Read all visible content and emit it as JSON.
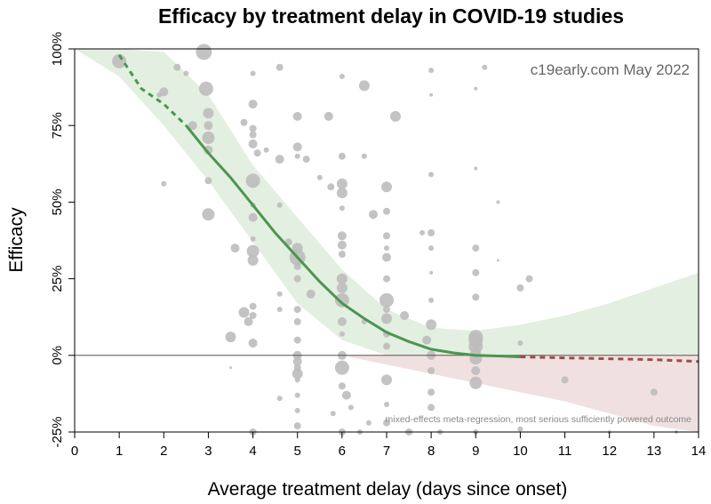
{
  "chart_data": {
    "type": "scatter",
    "title": "Efficacy by treatment delay in COVID-19 studies",
    "xlabel": "Average treatment delay (days since onset)",
    "ylabel": "Efficacy",
    "watermark": "c19early.com May 2022",
    "note": "mixed-effects meta-regression, most serious sufficiently powered outcome",
    "xlim": [
      0,
      14
    ],
    "ylim": [
      -25,
      100
    ],
    "xticks": [
      "0",
      "1",
      "2",
      "3",
      "4",
      "5",
      "6",
      "7",
      "8",
      "9",
      "10",
      "11",
      "12",
      "13",
      "14"
    ],
    "yticks": [
      {
        "value": 100,
        "label": "100%"
      },
      {
        "value": 75,
        "label": "75%"
      },
      {
        "value": 50,
        "label": "50%"
      },
      {
        "value": 25,
        "label": "25%"
      },
      {
        "value": 0,
        "label": "0%"
      },
      {
        "value": -25,
        "label": "-25%"
      }
    ],
    "colors": {
      "positive_band": "#e3efe0",
      "negative_band": "#f0e0e0",
      "positive_line": "#4a9650",
      "negative_line": "#a04a4a",
      "points": "#bdbdbd"
    },
    "band": [
      {
        "x": 0,
        "lo": 100,
        "hi": 100
      },
      {
        "x": 1,
        "lo": 91,
        "hi": 100
      },
      {
        "x": 2,
        "lo": 75,
        "hi": 99
      },
      {
        "x": 3,
        "lo": 57,
        "hi": 85
      },
      {
        "x": 4,
        "lo": 37,
        "hi": 62
      },
      {
        "x": 5,
        "lo": 17,
        "hi": 45
      },
      {
        "x": 6,
        "lo": 5,
        "hi": 28
      },
      {
        "x": 7,
        "lo": -3,
        "hi": 15
      },
      {
        "x": 8,
        "lo": -6,
        "hi": 9
      },
      {
        "x": 9,
        "lo": -9,
        "hi": 8
      },
      {
        "x": 10,
        "lo": -12,
        "hi": 10
      },
      {
        "x": 11,
        "lo": -15,
        "hi": 13
      },
      {
        "x": 12,
        "lo": -19,
        "hi": 17
      },
      {
        "x": 13,
        "lo": -23,
        "hi": 22
      },
      {
        "x": 14,
        "lo": -27,
        "hi": 27
      }
    ],
    "fit_line": {
      "dashed_start": [
        [
          1,
          98
        ],
        [
          1.5,
          87
        ],
        [
          2,
          82
        ],
        [
          2.5,
          75
        ]
      ],
      "solid": [
        [
          2.5,
          75
        ],
        [
          3,
          66
        ],
        [
          3.5,
          58
        ],
        [
          4,
          49
        ],
        [
          4.5,
          40
        ],
        [
          5,
          32
        ],
        [
          5.5,
          24
        ],
        [
          6,
          17
        ],
        [
          6.5,
          12
        ],
        [
          7,
          7.5
        ],
        [
          7.5,
          4.5
        ],
        [
          8,
          2
        ],
        [
          8.5,
          0.8
        ],
        [
          9,
          0
        ],
        [
          9.5,
          -0.2
        ],
        [
          10,
          -0.5
        ]
      ],
      "dashed_end": [
        [
          10,
          -0.5
        ],
        [
          11,
          -0.8
        ],
        [
          12,
          -1.1
        ],
        [
          13,
          -1.4
        ],
        [
          14,
          -2
        ]
      ]
    },
    "points": [
      [
        1,
        96,
        8
      ],
      [
        1.9,
        85,
        3
      ],
      [
        2,
        86,
        5
      ],
      [
        2.3,
        94,
        4
      ],
      [
        2.5,
        92,
        3
      ],
      [
        2.65,
        75,
        5
      ],
      [
        2.9,
        99,
        9
      ],
      [
        2.95,
        87,
        8
      ],
      [
        3,
        79,
        6
      ],
      [
        3,
        75,
        5
      ],
      [
        3,
        71,
        7
      ],
      [
        3,
        67,
        5
      ],
      [
        3,
        57,
        4
      ],
      [
        3,
        46,
        7
      ],
      [
        2,
        56,
        3
      ],
      [
        3.6,
        35,
        5
      ],
      [
        3.5,
        6,
        6
      ],
      [
        3.5,
        -4,
        1.5
      ],
      [
        3.8,
        14,
        6
      ],
      [
        3.9,
        11,
        5
      ],
      [
        4,
        92,
        3
      ],
      [
        4,
        82,
        5
      ],
      [
        3.8,
        76,
        4
      ],
      [
        4,
        74,
        4
      ],
      [
        4,
        72,
        4
      ],
      [
        4,
        69,
        5
      ],
      [
        4.1,
        66,
        4
      ],
      [
        4.3,
        67,
        3
      ],
      [
        4,
        57,
        8
      ],
      [
        4,
        49,
        3
      ],
      [
        4,
        45,
        5
      ],
      [
        4,
        38,
        3
      ],
      [
        4,
        34,
        7
      ],
      [
        4,
        31,
        6
      ],
      [
        4,
        16,
        4
      ],
      [
        4,
        13,
        4
      ],
      [
        4,
        4,
        5
      ],
      [
        4,
        -25,
        4
      ],
      [
        4.6,
        94,
        4
      ],
      [
        4.6,
        64,
        5
      ],
      [
        4.6,
        49,
        3
      ],
      [
        4.6,
        20,
        3
      ],
      [
        4.6,
        15,
        3
      ],
      [
        4.6,
        -14,
        3
      ],
      [
        4.8,
        37,
        4
      ],
      [
        5,
        78,
        5
      ],
      [
        5,
        68,
        5
      ],
      [
        5,
        65,
        3
      ],
      [
        5,
        35,
        6
      ],
      [
        5,
        32,
        9
      ],
      [
        5,
        29,
        4
      ],
      [
        5,
        25,
        4
      ],
      [
        5,
        15,
        4
      ],
      [
        5,
        11,
        4
      ],
      [
        5,
        5,
        4
      ],
      [
        5,
        0,
        5
      ],
      [
        5,
        -2,
        5
      ],
      [
        5,
        -4,
        4
      ],
      [
        5,
        -6,
        6
      ],
      [
        5,
        -8,
        3
      ],
      [
        5,
        -13,
        3
      ],
      [
        5,
        -18,
        3
      ],
      [
        5,
        -23,
        4
      ],
      [
        5.2,
        64,
        4
      ],
      [
        5.3,
        20,
        5
      ],
      [
        5.5,
        58,
        3
      ],
      [
        5.7,
        78,
        5
      ],
      [
        5.75,
        55,
        4
      ],
      [
        6,
        91,
        3
      ],
      [
        6,
        65,
        4
      ],
      [
        6,
        56,
        6
      ],
      [
        6,
        53,
        6
      ],
      [
        6,
        48,
        3
      ],
      [
        6,
        39,
        5
      ],
      [
        6,
        36,
        5
      ],
      [
        6,
        33,
        4
      ],
      [
        6,
        25,
        6
      ],
      [
        6,
        22,
        6
      ],
      [
        6,
        18,
        8
      ],
      [
        6,
        11,
        5
      ],
      [
        6,
        7,
        3
      ],
      [
        6,
        0,
        5
      ],
      [
        6,
        -4,
        8
      ],
      [
        6,
        -10,
        4
      ],
      [
        6.1,
        -13,
        5
      ],
      [
        6.2,
        -17,
        3
      ],
      [
        5.8,
        -19,
        3
      ],
      [
        6,
        -25,
        4
      ],
      [
        6.5,
        88,
        6
      ],
      [
        6.5,
        65,
        3
      ],
      [
        6.5,
        11,
        3
      ],
      [
        6.4,
        -25,
        3
      ],
      [
        6.6,
        -22,
        3
      ],
      [
        6.7,
        46,
        5
      ],
      [
        7,
        55,
        6
      ],
      [
        7,
        47,
        4
      ],
      [
        7,
        39,
        4
      ],
      [
        7,
        35,
        3
      ],
      [
        7,
        32,
        5
      ],
      [
        7,
        25,
        4
      ],
      [
        7,
        18,
        8
      ],
      [
        7,
        15,
        4
      ],
      [
        7,
        12,
        6
      ],
      [
        7,
        7,
        4
      ],
      [
        7,
        3,
        4
      ],
      [
        7,
        -8,
        6
      ],
      [
        7,
        -16,
        3
      ],
      [
        7,
        -22,
        4
      ],
      [
        7.2,
        78,
        6
      ],
      [
        7.4,
        13,
        5
      ],
      [
        7.5,
        -25,
        4
      ],
      [
        7.8,
        40,
        3
      ],
      [
        8,
        93,
        3
      ],
      [
        8,
        85,
        2
      ],
      [
        8,
        59,
        3
      ],
      [
        8,
        40,
        4
      ],
      [
        8,
        35,
        3
      ],
      [
        8,
        27,
        2
      ],
      [
        8,
        18,
        3
      ],
      [
        8,
        10,
        6
      ],
      [
        7.9,
        5,
        5
      ],
      [
        8,
        0,
        5
      ],
      [
        8,
        -5,
        4
      ],
      [
        8,
        -12,
        4
      ],
      [
        8,
        -17,
        4
      ],
      [
        8.2,
        -25,
        3
      ],
      [
        9,
        87,
        2
      ],
      [
        9.2,
        94,
        3
      ],
      [
        9,
        61,
        2
      ],
      [
        9,
        35,
        4
      ],
      [
        9,
        27,
        4
      ],
      [
        9,
        19,
        4
      ],
      [
        9,
        6,
        8
      ],
      [
        9,
        5,
        8
      ],
      [
        9,
        3,
        8
      ],
      [
        9,
        1,
        6
      ],
      [
        9,
        -1,
        7
      ],
      [
        9,
        -5,
        5
      ],
      [
        9,
        -9,
        7
      ],
      [
        9,
        -25,
        3
      ],
      [
        9.5,
        50,
        2
      ],
      [
        9.5,
        31,
        1.5
      ],
      [
        10,
        22,
        4
      ],
      [
        10.2,
        25,
        4
      ],
      [
        10,
        4,
        3
      ],
      [
        10,
        -24,
        3
      ],
      [
        11,
        -8,
        4
      ],
      [
        12,
        -25,
        2
      ],
      [
        13,
        -12,
        4
      ],
      [
        13.5,
        -25,
        2
      ]
    ]
  }
}
